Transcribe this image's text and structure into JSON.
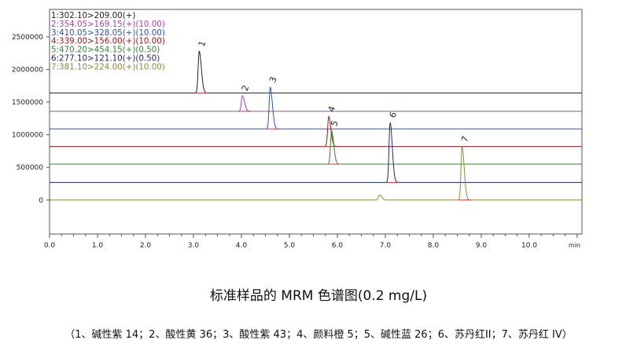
{
  "chart_data": {
    "type": "line",
    "xlabel": "min",
    "xlim": [
      0,
      11.1
    ],
    "ylim": [
      -520000,
      2920000
    ],
    "x_ticks": [
      {
        "value": 0.0,
        "label": "0.0"
      },
      {
        "value": 1.0,
        "label": "1.0"
      },
      {
        "value": 2.0,
        "label": "2.0"
      },
      {
        "value": 3.0,
        "label": "3.0"
      },
      {
        "value": 4.0,
        "label": "4.0"
      },
      {
        "value": 5.0,
        "label": "5.0"
      },
      {
        "value": 6.0,
        "label": "6.0"
      },
      {
        "value": 7.0,
        "label": "7.0"
      },
      {
        "value": 8.0,
        "label": "8.0"
      },
      {
        "value": 9.0,
        "label": "9.0"
      },
      {
        "value": 10.0,
        "label": "10.0"
      }
    ],
    "y_ticks": [
      {
        "value": 0,
        "label": "0"
      },
      {
        "value": 500000,
        "label": "500000"
      },
      {
        "value": 1000000,
        "label": "1000000"
      },
      {
        "value": 1500000,
        "label": "1500000"
      },
      {
        "value": 2000000,
        "label": "2000000"
      },
      {
        "value": 2500000,
        "label": "2500000"
      }
    ],
    "legend_placement": "top-left",
    "legend": [
      {
        "text": "1:302.10>209.00(+)",
        "color": "#222222"
      },
      {
        "text": "2:354.05>169.15(+)(10.00)",
        "color": "#b040b0"
      },
      {
        "text": "3:410.05>328.05(+)(10.00)",
        "color": "#3050c0"
      },
      {
        "text": "4:339.00>156.00(+)(10.00)",
        "color": "#a01818"
      },
      {
        "text": "5:470.20>454.15(+)(0.50)",
        "color": "#2a8a2a"
      },
      {
        "text": "6:277.10>121.10(+)(0.50)",
        "color": "#1e2a6a"
      },
      {
        "text": "7:381.10>224.00(+)(10.00)",
        "color": "#8a8a3a"
      }
    ],
    "series": [
      {
        "color": "#222222",
        "x_start": 0,
        "x_end": 11.1,
        "baseline": 1640000,
        "peaks": [
          {
            "rt": 3.12,
            "height": 2280000,
            "label": "1"
          }
        ]
      },
      {
        "color": "#b040b0",
        "x_start": 0,
        "x_end": 11.1,
        "baseline": 1360000,
        "peaks": [
          {
            "rt": 4.02,
            "height": 1600000,
            "label": "2"
          }
        ]
      },
      {
        "color": "#3050c0",
        "x_start": 0,
        "x_end": 11.1,
        "baseline": 1090000,
        "peaks": [
          {
            "rt": 4.6,
            "height": 1730000,
            "label": "3"
          }
        ]
      },
      {
        "color": "#a01818",
        "x_start": 0,
        "x_end": 11.1,
        "baseline": 820000,
        "peaks": [
          {
            "rt": 5.82,
            "height": 1280000,
            "label": "4"
          }
        ]
      },
      {
        "color": "#2a8a2a",
        "x_start": 0,
        "x_end": 11.1,
        "baseline": 550000,
        "peaks": [
          {
            "rt": 5.88,
            "height": 1060000,
            "label": "5"
          }
        ]
      },
      {
        "color": "#1e2a6a",
        "x_start": 0,
        "x_end": 11.1,
        "baseline": 270000,
        "peaks": [
          {
            "rt": 7.1,
            "height": 1190000,
            "label": "6"
          }
        ]
      },
      {
        "color": "#8a8a3a",
        "x_start": 0,
        "x_end": 11.1,
        "baseline": 0,
        "peaks": [
          {
            "rt": 6.88,
            "height": 80000,
            "label": ""
          },
          {
            "rt": 8.6,
            "height": 820000,
            "label": "7"
          }
        ]
      }
    ]
  },
  "title": "标准样品的 MRM 色谱图(0.2 mg/L)",
  "caption": "（1、碱性紫 14；2、酸性黄 36；3、酸性紫 43；4、颜料橙 5；5、碱性蓝 26；6、苏丹红II；7、苏丹红 IV）"
}
